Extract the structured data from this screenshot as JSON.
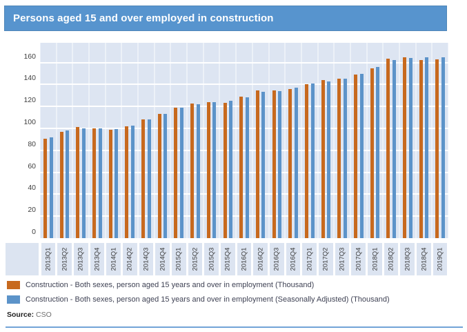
{
  "title": {
    "text": "Persons aged 15 and over employed in construction"
  },
  "footer": {
    "source_label": "Source:",
    "source_value": "CSO"
  },
  "colors": {
    "title_bar": "#5794ce",
    "plot_background": "#dde5f2",
    "gridline": "#ffffff",
    "series_orange": "#c7691e",
    "series_blue": "#5c93c9",
    "divider": "#71a3d7"
  },
  "chart_data": {
    "type": "bar",
    "title": "Persons aged 15 and over employed in construction",
    "xlabel": "",
    "ylabel": "",
    "categories": [
      "2013Q1",
      "2013Q2",
      "2013Q3",
      "2013Q4",
      "2014Q1",
      "2014Q2",
      "2014Q3",
      "2014Q4",
      "2015Q1",
      "2015Q2",
      "2015Q3",
      "2015Q4",
      "2016Q1",
      "2016Q2",
      "2016Q3",
      "2016Q4",
      "2017Q1",
      "2017Q2",
      "2017Q3",
      "2017Q4",
      "2018Q1",
      "2018Q2",
      "2018Q3",
      "2018Q4",
      "2019Q1"
    ],
    "series": [
      {
        "name": "Construction - Both sexes, person aged 15 years and over in employment (Thousand)",
        "color": "#c7691e",
        "values": [
          90.5,
          97,
          101,
          100,
          98.5,
          102,
          108.5,
          113.5,
          119,
          122.5,
          124,
          123,
          129,
          134.5,
          134.5,
          136,
          140.5,
          144,
          145.5,
          149,
          155,
          163.5,
          165,
          162.5,
          163
        ]
      },
      {
        "name": "Construction - Both sexes, person aged 15 years and over in employment (Seasonally Adjusted) (Thousand)",
        "color": "#5c93c9",
        "values": [
          92,
          98,
          100,
          100,
          99.5,
          102.5,
          108,
          113.5,
          119,
          122,
          124,
          125,
          128.5,
          133.5,
          134,
          137,
          141,
          143,
          145.5,
          150,
          156,
          162.5,
          164,
          164.5,
          164.5
        ]
      }
    ],
    "yticks": [
      0,
      20,
      40,
      60,
      80,
      100,
      120,
      140,
      160
    ],
    "ylim": [
      0,
      178
    ],
    "grid": true,
    "legend_position": "bottom",
    "source": "CSO"
  }
}
